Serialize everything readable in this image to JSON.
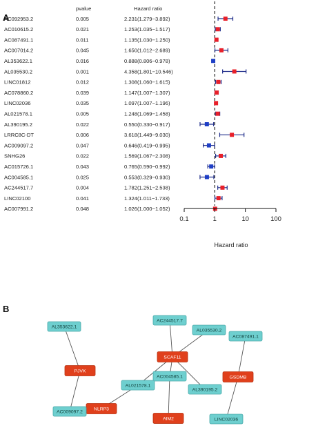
{
  "panel_a_label": "A",
  "panel_b_label": "B",
  "chart_data": {
    "type": "forest",
    "headers": {
      "pvalue": "pvalue",
      "hr": "Hazard ratio"
    },
    "xlabel": "Hazard ratio",
    "x_scale": "log10",
    "xlim": [
      0.1,
      100
    ],
    "x_ticks": [
      "0.1",
      "1",
      "10",
      "100"
    ],
    "reference_line": 1,
    "colors": {
      "risk": "#e8202a",
      "protective": "#1f3fc6",
      "ci": "#1f2d8a"
    },
    "rows": [
      {
        "gene": "AC092953.2",
        "pvalue": "0.005",
        "hr_text": "2.231(1.279−3.892)",
        "hr": 2.231,
        "lo": 1.279,
        "hi": 3.892
      },
      {
        "gene": "AC010615.2",
        "pvalue": "0.021",
        "hr_text": "1.253(1.035−1.517)",
        "hr": 1.253,
        "lo": 1.035,
        "hi": 1.517
      },
      {
        "gene": "AC087491.1",
        "pvalue": "0.011",
        "hr_text": "1.135(1.030−1.250)",
        "hr": 1.135,
        "lo": 1.03,
        "hi": 1.25
      },
      {
        "gene": "AC007014.2",
        "pvalue": "0.045",
        "hr_text": "1.650(1.012−2.689)",
        "hr": 1.65,
        "lo": 1.012,
        "hi": 2.689
      },
      {
        "gene": "AL353622.1",
        "pvalue": "0.016",
        "hr_text": "0.888(0.806−0.978)",
        "hr": 0.888,
        "lo": 0.806,
        "hi": 0.978
      },
      {
        "gene": "AL035530.2",
        "pvalue": "0.001",
        "hr_text": "4.358(1.801−10.546)",
        "hr": 4.358,
        "lo": 1.801,
        "hi": 10.546
      },
      {
        "gene": "LINC01812",
        "pvalue": "0.012",
        "hr_text": "1.308(1.060−1.615)",
        "hr": 1.308,
        "lo": 1.06,
        "hi": 1.615
      },
      {
        "gene": "AC078860.2",
        "pvalue": "0.039",
        "hr_text": "1.147(1.007−1.307)",
        "hr": 1.147,
        "lo": 1.007,
        "hi": 1.307
      },
      {
        "gene": "LINC02036",
        "pvalue": "0.035",
        "hr_text": "1.097(1.007−1.196)",
        "hr": 1.097,
        "lo": 1.007,
        "hi": 1.196
      },
      {
        "gene": "AL021578.1",
        "pvalue": "0.005",
        "hr_text": "1.248(1.069−1.458)",
        "hr": 1.248,
        "lo": 1.069,
        "hi": 1.458
      },
      {
        "gene": "AL390195.2",
        "pvalue": "0.022",
        "hr_text": "0.550(0.330−0.917)",
        "hr": 0.55,
        "lo": 0.33,
        "hi": 0.917
      },
      {
        "gene": "LRRC8C-DT",
        "pvalue": "0.006",
        "hr_text": "3.618(1.449−9.030)",
        "hr": 3.618,
        "lo": 1.449,
        "hi": 9.03
      },
      {
        "gene": "AC009097.2",
        "pvalue": "0.047",
        "hr_text": "0.646(0.419−0.995)",
        "hr": 0.646,
        "lo": 0.419,
        "hi": 0.995
      },
      {
        "gene": "SNHG26",
        "pvalue": "0.022",
        "hr_text": "1.569(1.067−2.308)",
        "hr": 1.569,
        "lo": 1.067,
        "hi": 2.308
      },
      {
        "gene": "AC015726.1",
        "pvalue": "0.043",
        "hr_text": "0.765(0.590−0.992)",
        "hr": 0.765,
        "lo": 0.59,
        "hi": 0.992
      },
      {
        "gene": "AC004585.1",
        "pvalue": "0.025",
        "hr_text": "0.553(0.329−0.930)",
        "hr": 0.553,
        "lo": 0.329,
        "hi": 0.93
      },
      {
        "gene": "AC244517.7",
        "pvalue": "0.004",
        "hr_text": "1.782(1.251−2.538)",
        "hr": 1.782,
        "lo": 1.251,
        "hi": 2.538
      },
      {
        "gene": "LINC02100",
        "pvalue": "0.041",
        "hr_text": "1.324(1.011−1.733)",
        "hr": 1.324,
        "lo": 1.011,
        "hi": 1.733
      },
      {
        "gene": "AC007991.2",
        "pvalue": "0.048",
        "hr_text": "1.026(1.000−1.052)",
        "hr": 1.026,
        "lo": 1.0,
        "hi": 1.052
      }
    ]
  },
  "network": {
    "colors": {
      "lncrna": "#6ecfcf",
      "lncrna_border": "#4aa9a9",
      "gene": "#e0401c",
      "edge": "#555555"
    },
    "nodes": [
      {
        "id": "AL353622.1",
        "label": "AL353622.1",
        "type": "lncrna"
      },
      {
        "id": "AC244517.7",
        "label": "AC244517.7",
        "type": "lncrna"
      },
      {
        "id": "AL035530.2",
        "label": "AL035530.2",
        "type": "lncrna"
      },
      {
        "id": "AC087491.1",
        "label": "AC087491.1",
        "type": "lncrna"
      },
      {
        "id": "PJVK",
        "label": "PJVK",
        "type": "gene"
      },
      {
        "id": "SCAF11",
        "label": "SCAF11",
        "type": "gene"
      },
      {
        "id": "AC004585.1",
        "label": "AC004585.1",
        "type": "lncrna"
      },
      {
        "id": "AL021578.1",
        "label": "AL021578.1",
        "type": "lncrna"
      },
      {
        "id": "AL390195.2",
        "label": "AL390195.2",
        "type": "lncrna"
      },
      {
        "id": "GSDMB",
        "label": "GSDMB",
        "type": "gene"
      },
      {
        "id": "NLRP3",
        "label": "NLRP3",
        "type": "gene"
      },
      {
        "id": "AC009097.2",
        "label": "AC009097.2",
        "type": "lncrna"
      },
      {
        "id": "AIM2",
        "label": "AIM2",
        "type": "gene"
      },
      {
        "id": "LINC02036",
        "label": "LINC02036",
        "type": "lncrna"
      }
    ],
    "edges": [
      [
        "AL353622.1",
        "PJVK"
      ],
      [
        "PJVK",
        "AC009097.2"
      ],
      [
        "AC244517.7",
        "SCAF11"
      ],
      [
        "AL035530.2",
        "SCAF11"
      ],
      [
        "SCAF11",
        "AL021578.1"
      ],
      [
        "SCAF11",
        "AC004585.1"
      ],
      [
        "SCAF11",
        "AL390195.2"
      ],
      [
        "AL021578.1",
        "NLRP3"
      ],
      [
        "AC004585.1",
        "AIM2"
      ],
      [
        "AC087491.1",
        "GSDMB"
      ],
      [
        "GSDMB",
        "LINC02036"
      ]
    ]
  }
}
